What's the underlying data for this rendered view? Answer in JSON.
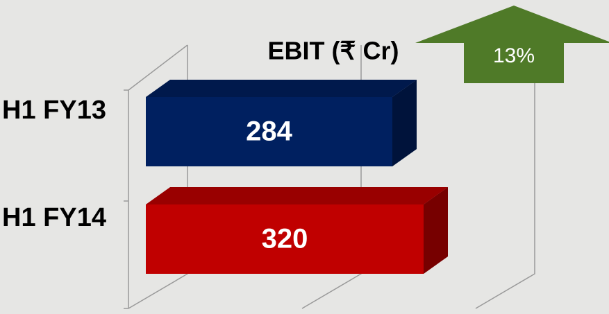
{
  "chart_data": {
    "type": "bar3d_horizontal",
    "title": "EBIT (₹ Cr)",
    "categories": [
      "H1 FY13",
      "H1 FY14"
    ],
    "values": [
      284,
      320
    ],
    "colors": [
      "#002060",
      "#c00000"
    ],
    "xlim": [
      0,
      400
    ],
    "xticks": [
      0,
      200,
      400
    ],
    "grid": true,
    "annotation": {
      "text": "13%",
      "color": "#4f7a28"
    }
  }
}
